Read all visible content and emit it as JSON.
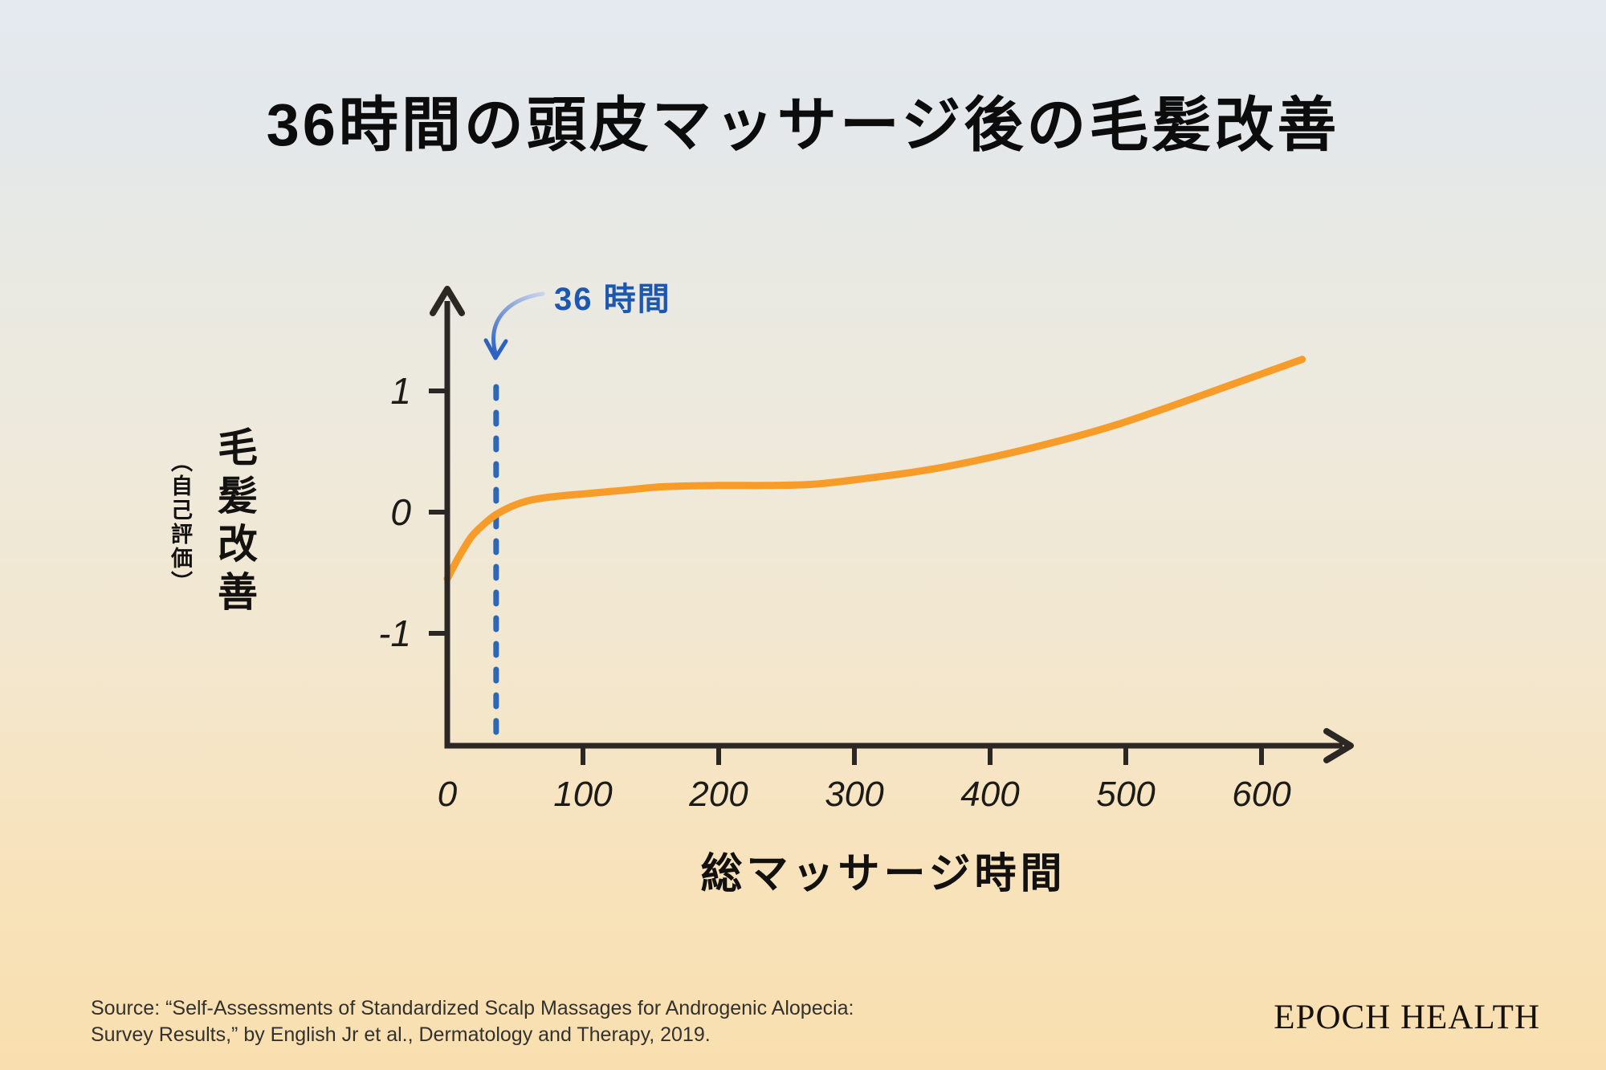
{
  "title": "36時間の頭皮マッサージ後の毛髪改善",
  "chart_data": {
    "type": "line",
    "title": "36時間の頭皮マッサージ後の毛髪改善",
    "xlabel": "総マッサージ時間",
    "ylabel": "毛髪改善",
    "ylabel_sub": "（自己評価）",
    "x_ticks": [
      0,
      100,
      200,
      300,
      400,
      500,
      600
    ],
    "y_ticks": [
      1,
      0,
      -1
    ],
    "xlim": [
      0,
      672
    ],
    "ylim": [
      -1.93,
      1.79
    ],
    "grid": false,
    "legend": "none",
    "annotation": {
      "label": "36 時間",
      "x_value": 36
    },
    "series": [
      {
        "name": "毛髪改善（自己評価）",
        "color": "#F79C28",
        "points": [
          [
            0,
            -0.55
          ],
          [
            8,
            -0.38
          ],
          [
            18,
            -0.2
          ],
          [
            28,
            -0.09
          ],
          [
            36,
            -0.02
          ],
          [
            48,
            0.05
          ],
          [
            62,
            0.1
          ],
          [
            80,
            0.13
          ],
          [
            100,
            0.15
          ],
          [
            130,
            0.18
          ],
          [
            160,
            0.21
          ],
          [
            200,
            0.22
          ],
          [
            235,
            0.22
          ],
          [
            270,
            0.23
          ],
          [
            310,
            0.28
          ],
          [
            355,
            0.35
          ],
          [
            400,
            0.45
          ],
          [
            445,
            0.57
          ],
          [
            490,
            0.71
          ],
          [
            530,
            0.86
          ],
          [
            570,
            1.02
          ],
          [
            600,
            1.14
          ],
          [
            630,
            1.26
          ]
        ]
      }
    ]
  },
  "colors": {
    "curve_orange": "#F79C28",
    "annotation_blue": "#1C57B0",
    "dash_blue": "#2E68B4",
    "arrow_gradient_start": "#C9D4EC",
    "arrow_gradient_end": "#2D62C2",
    "axis": "#2B2724",
    "tick_text": "#1D1B18",
    "bg_top": "#E5EAF0",
    "bg_bottom": "#F9DFAF"
  },
  "footer": {
    "source_lines": [
      "Source: “Self-Assessments of Standardized Scalp Massages for Androgenic Alopecia:",
      "Survey Results,” by English Jr et al., Dermatology and Therapy, 2019."
    ],
    "brand": "EPOCH HEALTH"
  }
}
